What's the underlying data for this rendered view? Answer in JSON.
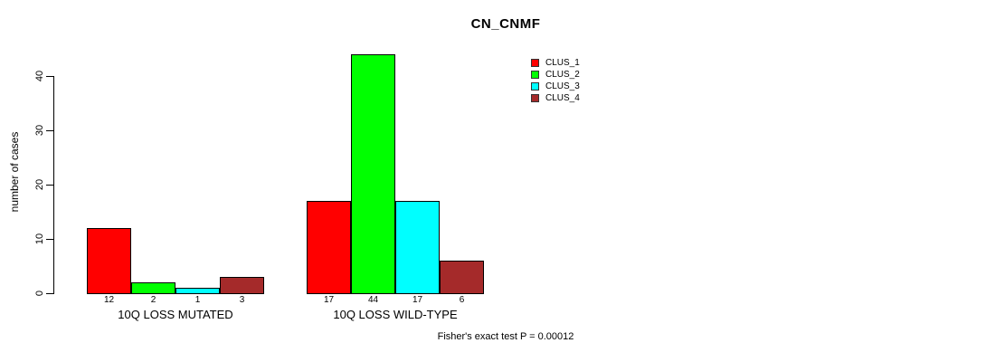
{
  "title": "CN_CNMF",
  "ylabel": "number of cases",
  "footer": "Fisher's exact test P = 0.00012",
  "legend": {
    "entries": [
      {
        "label": "CLUS_1",
        "color": "#FF0000"
      },
      {
        "label": "CLUS_2",
        "color": "#00FF00"
      },
      {
        "label": "CLUS_3",
        "color": "#00FFFF"
      },
      {
        "label": "CLUS_4",
        "color": "#A52A2A"
      }
    ]
  },
  "chart_data": {
    "type": "bar",
    "grouped": true,
    "title": "CN_CNMF",
    "xlabel": "",
    "ylabel": "number of cases",
    "categories": [
      "10Q LOSS MUTATED",
      "10Q LOSS WILD-TYPE"
    ],
    "series": [
      {
        "name": "CLUS_1",
        "color": "#FF0000",
        "values": [
          12,
          17
        ]
      },
      {
        "name": "CLUS_2",
        "color": "#00FF00",
        "values": [
          2,
          44
        ]
      },
      {
        "name": "CLUS_3",
        "color": "#00FFFF",
        "values": [
          1,
          17
        ]
      },
      {
        "name": "CLUS_4",
        "color": "#A52A2A",
        "values": [
          3,
          6
        ]
      }
    ],
    "bar_value_labels": [
      [
        12,
        2,
        1,
        3
      ],
      [
        17,
        44,
        17,
        6
      ]
    ],
    "yticks": [
      0,
      10,
      20,
      30,
      40
    ],
    "ylim": [
      0,
      44
    ],
    "grid": false,
    "legend_position": "top-right",
    "annotation": "Fisher's exact test P = 0.00012"
  }
}
